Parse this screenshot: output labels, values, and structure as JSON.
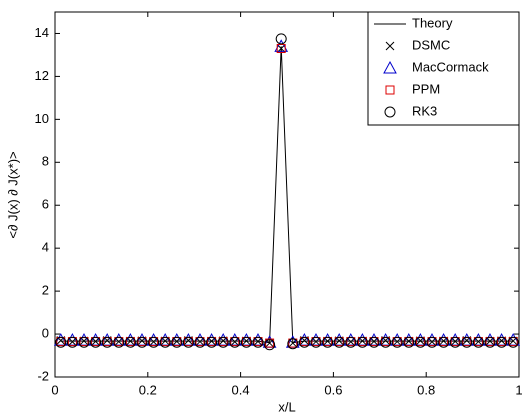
{
  "chart_data": {
    "type": "line_scatter",
    "x_label": "x/L",
    "y_label": "<∂ J(x) ∂ J(x*)>",
    "x": [
      0.0125,
      0.0375,
      0.0625,
      0.0875,
      0.1125,
      0.1375,
      0.1625,
      0.1875,
      0.2125,
      0.2375,
      0.2625,
      0.2875,
      0.3125,
      0.3375,
      0.3625,
      0.3875,
      0.4125,
      0.4375,
      0.4625,
      0.4875,
      0.5125,
      0.5375,
      0.5625,
      0.5875,
      0.6125,
      0.6375,
      0.6625,
      0.6875,
      0.7125,
      0.7375,
      0.7625,
      0.7875,
      0.8125,
      0.8375,
      0.8625,
      0.8875,
      0.9125,
      0.9375,
      0.9625,
      0.9875
    ],
    "series": [
      {
        "name": "Theory",
        "color": "#000000",
        "marker": "line",
        "values": [
          -0.33,
          -0.33,
          -0.33,
          -0.33,
          -0.33,
          -0.33,
          -0.33,
          -0.33,
          -0.33,
          -0.33,
          -0.33,
          -0.33,
          -0.33,
          -0.33,
          -0.33,
          -0.33,
          -0.33,
          -0.33,
          -0.4,
          13.4,
          -0.4,
          -0.33,
          -0.33,
          -0.33,
          -0.33,
          -0.33,
          -0.33,
          -0.33,
          -0.33,
          -0.33,
          -0.33,
          -0.33,
          -0.33,
          -0.33,
          -0.33,
          -0.33,
          -0.33,
          -0.33,
          -0.33,
          -0.33
        ]
      },
      {
        "name": "DSMC",
        "color": "#000000",
        "marker": "x",
        "values": [
          -0.3,
          -0.36,
          -0.32,
          -0.34,
          -0.3,
          -0.35,
          -0.33,
          -0.31,
          -0.36,
          -0.32,
          -0.34,
          -0.3,
          -0.35,
          -0.33,
          -0.31,
          -0.36,
          -0.32,
          -0.34,
          -0.42,
          13.3,
          -0.42,
          -0.3,
          -0.35,
          -0.33,
          -0.31,
          -0.36,
          -0.32,
          -0.34,
          -0.3,
          -0.35,
          -0.33,
          -0.31,
          -0.36,
          -0.32,
          -0.34,
          -0.3,
          -0.35,
          -0.33,
          -0.31,
          -0.32
        ]
      },
      {
        "name": "MacCormack",
        "color": "#0000cc",
        "marker": "triangle",
        "values": [
          -0.28,
          -0.28,
          -0.28,
          -0.28,
          -0.28,
          -0.28,
          -0.28,
          -0.28,
          -0.28,
          -0.28,
          -0.28,
          -0.28,
          -0.28,
          -0.28,
          -0.28,
          -0.28,
          -0.28,
          -0.28,
          -0.38,
          13.4,
          -0.38,
          -0.28,
          -0.28,
          -0.28,
          -0.28,
          -0.28,
          -0.28,
          -0.28,
          -0.28,
          -0.28,
          -0.28,
          -0.28,
          -0.28,
          -0.28,
          -0.28,
          -0.28,
          -0.28,
          -0.28,
          -0.28,
          -0.28
        ]
      },
      {
        "name": "PPM",
        "color": "#dd0000",
        "marker": "square",
        "values": [
          -0.35,
          -0.35,
          -0.35,
          -0.35,
          -0.35,
          -0.35,
          -0.35,
          -0.35,
          -0.35,
          -0.35,
          -0.35,
          -0.35,
          -0.35,
          -0.35,
          -0.35,
          -0.35,
          -0.35,
          -0.35,
          -0.42,
          13.3,
          -0.42,
          -0.35,
          -0.35,
          -0.35,
          -0.35,
          -0.35,
          -0.35,
          -0.35,
          -0.35,
          -0.35,
          -0.35,
          -0.35,
          -0.35,
          -0.35,
          -0.35,
          -0.35,
          -0.35,
          -0.35,
          -0.35,
          -0.35
        ]
      },
      {
        "name": "RK3",
        "color": "#000000",
        "marker": "circle",
        "values": [
          -0.38,
          -0.38,
          -0.38,
          -0.38,
          -0.38,
          -0.38,
          -0.38,
          -0.38,
          -0.38,
          -0.38,
          -0.38,
          -0.38,
          -0.38,
          -0.38,
          -0.38,
          -0.38,
          -0.38,
          -0.38,
          -0.5,
          13.75,
          -0.45,
          -0.38,
          -0.38,
          -0.38,
          -0.38,
          -0.38,
          -0.38,
          -0.38,
          -0.38,
          -0.38,
          -0.38,
          -0.38,
          -0.38,
          -0.38,
          -0.38,
          -0.38,
          -0.38,
          -0.38,
          -0.38,
          -0.38
        ]
      }
    ],
    "xlim": [
      0,
      1
    ],
    "xticks": [
      0,
      0.2,
      0.4,
      0.6,
      0.8,
      1
    ],
    "ylim": [
      -2,
      15
    ],
    "yticks": [
      -2,
      0,
      2,
      4,
      6,
      8,
      10,
      12,
      14
    ],
    "grid": false,
    "legend": "top-right"
  }
}
